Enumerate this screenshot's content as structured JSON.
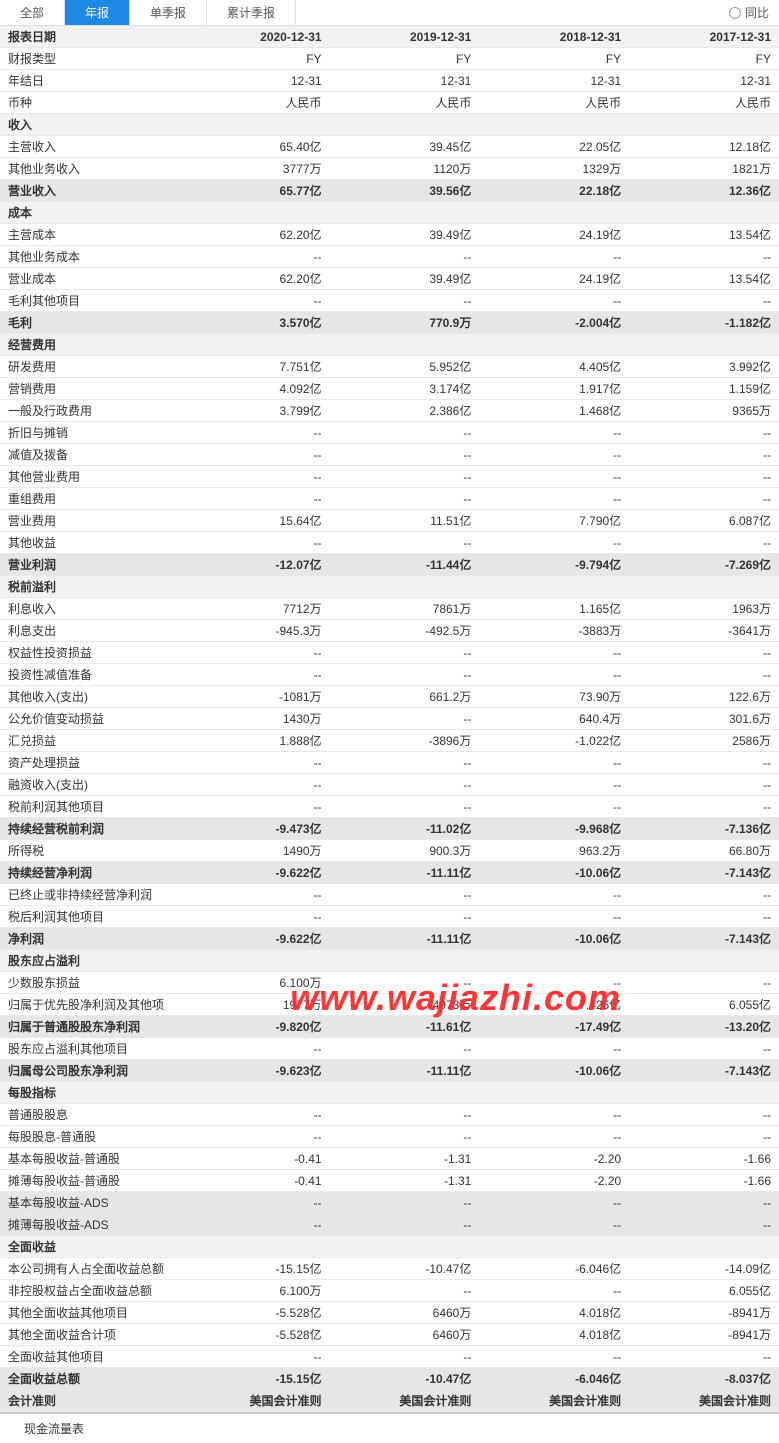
{
  "tabs": {
    "all": "全部",
    "annual": "年报",
    "quarterly": "单季报",
    "cumulative": "累计季报"
  },
  "yoy_label": "同比",
  "columns": [
    "2020-12-31",
    "2019-12-31",
    "2018-12-31",
    "2017-12-31"
  ],
  "rows": [
    {
      "type": "head",
      "label": "报表日期",
      "vals": [
        "2020-12-31",
        "2019-12-31",
        "2018-12-31",
        "2017-12-31"
      ]
    },
    {
      "type": "data",
      "label": "财报类型",
      "vals": [
        "FY",
        "FY",
        "FY",
        "FY"
      ]
    },
    {
      "type": "data",
      "label": "年结日",
      "vals": [
        "12-31",
        "12-31",
        "12-31",
        "12-31"
      ]
    },
    {
      "type": "data",
      "label": "币种",
      "vals": [
        "人民币",
        "人民币",
        "人民币",
        "人民币"
      ]
    },
    {
      "type": "section",
      "label": "收入",
      "vals": [
        "",
        "",
        "",
        ""
      ]
    },
    {
      "type": "data",
      "label": "主营收入",
      "vals": [
        "65.40亿",
        "39.45亿",
        "22.05亿",
        "12.18亿"
      ]
    },
    {
      "type": "data",
      "label": "其他业务收入",
      "vals": [
        "3777万",
        "1120万",
        "1329万",
        "1821万"
      ]
    },
    {
      "type": "shaded bold",
      "label": "营业收入",
      "vals": [
        "65.77亿",
        "39.56亿",
        "22.18亿",
        "12.36亿"
      ]
    },
    {
      "type": "section",
      "label": "成本",
      "vals": [
        "",
        "",
        "",
        ""
      ]
    },
    {
      "type": "data",
      "label": "主营成本",
      "vals": [
        "62.20亿",
        "39.49亿",
        "24.19亿",
        "13.54亿"
      ]
    },
    {
      "type": "data",
      "label": "其他业务成本",
      "vals": [
        "--",
        "--",
        "--",
        "--"
      ]
    },
    {
      "type": "data",
      "label": "营业成本",
      "vals": [
        "62.20亿",
        "39.49亿",
        "24.19亿",
        "13.54亿"
      ]
    },
    {
      "type": "data",
      "label": "毛利其他项目",
      "vals": [
        "--",
        "--",
        "--",
        "--"
      ]
    },
    {
      "type": "shaded bold",
      "label": "毛利",
      "vals": [
        "3.570亿",
        "770.9万",
        "-2.004亿",
        "-1.182亿"
      ]
    },
    {
      "type": "section",
      "label": "经营费用",
      "vals": [
        "",
        "",
        "",
        ""
      ]
    },
    {
      "type": "data",
      "label": "研发费用",
      "vals": [
        "7.751亿",
        "5.952亿",
        "4.405亿",
        "3.992亿"
      ]
    },
    {
      "type": "data",
      "label": "营销费用",
      "vals": [
        "4.092亿",
        "3.174亿",
        "1.917亿",
        "1.159亿"
      ]
    },
    {
      "type": "data",
      "label": "一般及行政费用",
      "vals": [
        "3.799亿",
        "2.386亿",
        "1.468亿",
        "9365万"
      ]
    },
    {
      "type": "data",
      "label": "折旧与摊销",
      "vals": [
        "--",
        "--",
        "--",
        "--"
      ]
    },
    {
      "type": "data",
      "label": "减值及拨备",
      "vals": [
        "--",
        "--",
        "--",
        "--"
      ]
    },
    {
      "type": "data",
      "label": "其他营业费用",
      "vals": [
        "--",
        "--",
        "--",
        "--"
      ]
    },
    {
      "type": "data",
      "label": "重组费用",
      "vals": [
        "--",
        "--",
        "--",
        "--"
      ]
    },
    {
      "type": "data",
      "label": "营业费用",
      "vals": [
        "15.64亿",
        "11.51亿",
        "7.790亿",
        "6.087亿"
      ]
    },
    {
      "type": "data",
      "label": "其他收益",
      "vals": [
        "--",
        "--",
        "--",
        "--"
      ]
    },
    {
      "type": "shaded bold",
      "label": "营业利润",
      "vals": [
        "-12.07亿",
        "-11.44亿",
        "-9.794亿",
        "-7.269亿"
      ]
    },
    {
      "type": "section",
      "label": "税前溢利",
      "vals": [
        "",
        "",
        "",
        ""
      ]
    },
    {
      "type": "data",
      "label": "利息收入",
      "vals": [
        "7712万",
        "7861万",
        "1.165亿",
        "1963万"
      ]
    },
    {
      "type": "data",
      "label": "利息支出",
      "vals": [
        "-945.3万",
        "-492.5万",
        "-3883万",
        "-3641万"
      ]
    },
    {
      "type": "data",
      "label": "权益性投资损益",
      "vals": [
        "--",
        "--",
        "--",
        "--"
      ]
    },
    {
      "type": "data",
      "label": "投资性减值准备",
      "vals": [
        "--",
        "--",
        "--",
        "--"
      ]
    },
    {
      "type": "data",
      "label": "其他收入(支出)",
      "vals": [
        "-1081万",
        "661.2万",
        "73.90万",
        "122.6万"
      ]
    },
    {
      "type": "data",
      "label": "公允价值变动损益",
      "vals": [
        "1430万",
        "--",
        "640.4万",
        "301.6万"
      ]
    },
    {
      "type": "data",
      "label": "汇兑损益",
      "vals": [
        "1.888亿",
        "-3896万",
        "-1.022亿",
        "2586万"
      ]
    },
    {
      "type": "data",
      "label": "资产处理损益",
      "vals": [
        "--",
        "--",
        "--",
        "--"
      ]
    },
    {
      "type": "data",
      "label": "融资收入(支出)",
      "vals": [
        "--",
        "--",
        "--",
        "--"
      ]
    },
    {
      "type": "data",
      "label": "税前利润其他项目",
      "vals": [
        "--",
        "--",
        "--",
        "--"
      ]
    },
    {
      "type": "shaded bold",
      "label": "持续经营税前利润",
      "vals": [
        "-9.473亿",
        "-11.02亿",
        "-9.968亿",
        "-7.136亿"
      ]
    },
    {
      "type": "data",
      "label": "所得税",
      "vals": [
        "1490万",
        "900.3万",
        "963.2万",
        "66.80万"
      ]
    },
    {
      "type": "shaded bold",
      "label": "持续经营净利润",
      "vals": [
        "-9.622亿",
        "-11.11亿",
        "-10.06亿",
        "-7.143亿"
      ]
    },
    {
      "type": "data",
      "label": "已终止或非持续经营净利润",
      "vals": [
        "--",
        "--",
        "--",
        "--"
      ]
    },
    {
      "type": "data",
      "label": "税后利润其他项目",
      "vals": [
        "--",
        "--",
        "--",
        "--"
      ]
    },
    {
      "type": "shaded bold",
      "label": "净利润",
      "vals": [
        "-9.622亿",
        "-11.11亿",
        "-10.06亿",
        "-7.143亿"
      ]
    },
    {
      "type": "section",
      "label": "股东应占溢利",
      "vals": [
        "",
        "",
        "",
        ""
      ]
    },
    {
      "type": "data",
      "label": "少数股东损益",
      "vals": [
        "6.100万",
        "--",
        "--",
        "--"
      ]
    },
    {
      "type": "data",
      "label": "归属于优先股净利润及其他项",
      "vals": [
        "1977万",
        "4973万",
        "7.425亿",
        "6.055亿"
      ]
    },
    {
      "type": "shaded bold",
      "label": "归属于普通股股东净利润",
      "vals": [
        "-9.820亿",
        "-11.61亿",
        "-17.49亿",
        "-13.20亿"
      ]
    },
    {
      "type": "data",
      "label": "股东应占溢利其他项目",
      "vals": [
        "--",
        "--",
        "--",
        "--"
      ]
    },
    {
      "type": "shaded bold",
      "label": "归属母公司股东净利润",
      "vals": [
        "-9.623亿",
        "-11.11亿",
        "-10.06亿",
        "-7.143亿"
      ]
    },
    {
      "type": "section",
      "label": "每股指标",
      "vals": [
        "",
        "",
        "",
        ""
      ]
    },
    {
      "type": "data",
      "label": "普通股股息",
      "vals": [
        "--",
        "--",
        "--",
        "--"
      ]
    },
    {
      "type": "data",
      "label": "每股股息-普通股",
      "vals": [
        "--",
        "--",
        "--",
        "--"
      ]
    },
    {
      "type": "data",
      "label": "基本每股收益-普通股",
      "vals": [
        "-0.41",
        "-1.31",
        "-2.20",
        "-1.66"
      ]
    },
    {
      "type": "data",
      "label": "摊薄每股收益-普通股",
      "vals": [
        "-0.41",
        "-1.31",
        "-2.20",
        "-1.66"
      ]
    },
    {
      "type": "shaded",
      "label": "基本每股收益-ADS",
      "vals": [
        "--",
        "--",
        "--",
        "--"
      ]
    },
    {
      "type": "shaded",
      "label": "摊薄每股收益-ADS",
      "vals": [
        "--",
        "--",
        "--",
        "--"
      ]
    },
    {
      "type": "section",
      "label": "全面收益",
      "vals": [
        "",
        "",
        "",
        ""
      ]
    },
    {
      "type": "data",
      "label": "本公司拥有人占全面收益总额",
      "vals": [
        "-15.15亿",
        "-10.47亿",
        "-6.046亿",
        "-14.09亿"
      ]
    },
    {
      "type": "data",
      "label": "非控股权益占全面收益总额",
      "vals": [
        "6.100万",
        "--",
        "--",
        "6.055亿"
      ]
    },
    {
      "type": "data",
      "label": "其他全面收益其他项目",
      "vals": [
        "-5.528亿",
        "6460万",
        "4.018亿",
        "-8941万"
      ]
    },
    {
      "type": "data",
      "label": "其他全面收益合计项",
      "vals": [
        "-5.528亿",
        "6460万",
        "4.018亿",
        "-8941万"
      ]
    },
    {
      "type": "data",
      "label": "全面收益其他项目",
      "vals": [
        "--",
        "--",
        "--",
        "--"
      ]
    },
    {
      "type": "shaded bold",
      "label": "全面收益总额",
      "vals": [
        "-15.15亿",
        "-10.47亿",
        "-6.046亿",
        "-8.037亿"
      ]
    },
    {
      "type": "shaded bold",
      "label": "会计准则",
      "vals": [
        "美国会计准则",
        "美国会计准则",
        "美国会计准则",
        "美国会计准则"
      ]
    }
  ],
  "cashflow_label": "现金流量表",
  "watermark": "www.wajiazhi.com"
}
